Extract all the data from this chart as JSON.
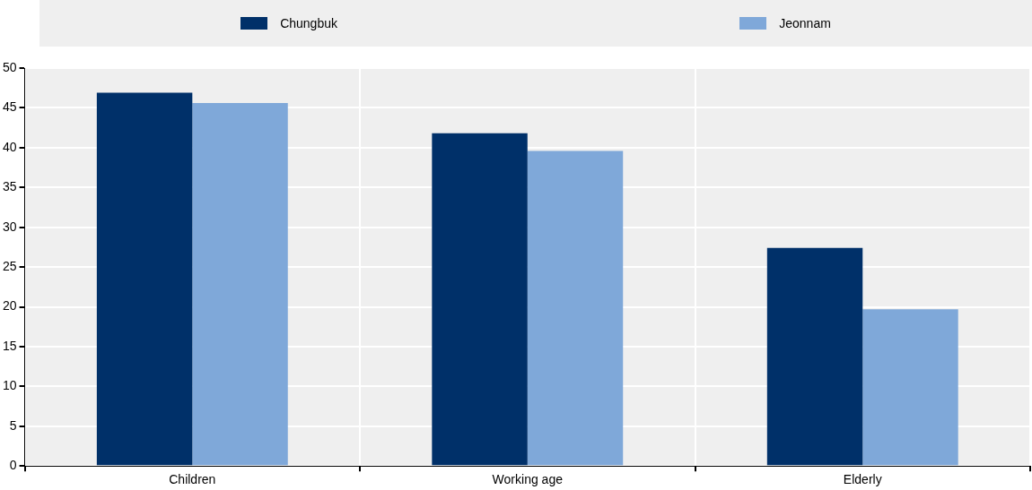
{
  "chart_data": {
    "type": "bar",
    "categories": [
      "Children",
      "Working age",
      "Elderly"
    ],
    "series": [
      {
        "name": "Chungbuk",
        "color": "#003069",
        "values": [
          46.9,
          41.8,
          27.4
        ]
      },
      {
        "name": "Jeonnam",
        "color": "#7fa8d9",
        "values": [
          45.6,
          39.6,
          19.7
        ]
      }
    ],
    "ylim": [
      0,
      50
    ],
    "yticks": [
      0,
      5,
      10,
      15,
      20,
      25,
      30,
      35,
      40,
      45,
      50
    ],
    "grid": true,
    "legend": "top"
  }
}
